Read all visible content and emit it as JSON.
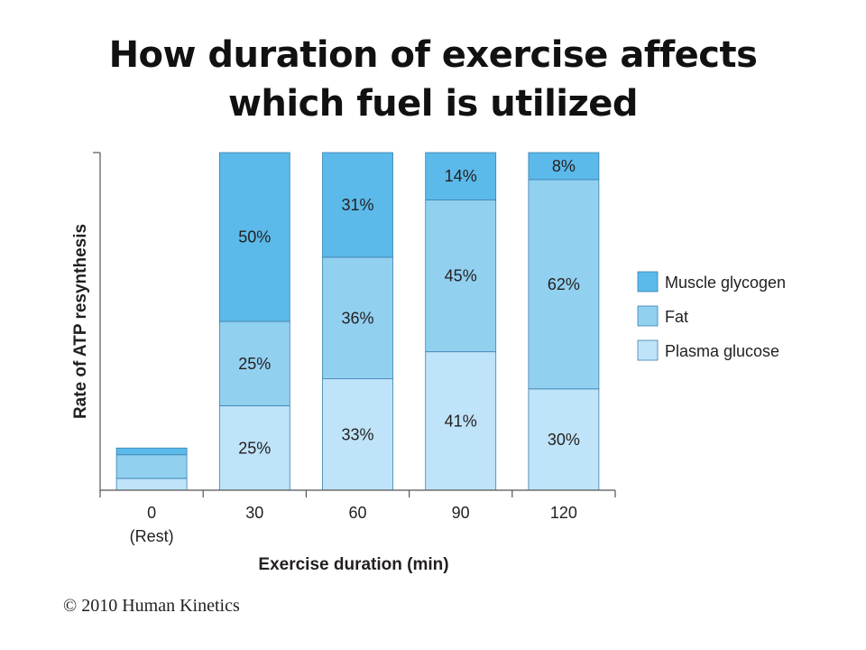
{
  "title_lines": [
    "How duration of exercise affects",
    "which fuel is utilized"
  ],
  "copyright": "© 2010 Human Kinetics",
  "colors": {
    "muscle_glycogen": "#5bbae9",
    "fat": "#92d0f0",
    "plasma_glucose": "#bfe3f8",
    "outline": "#3a7fb0",
    "axis": "#555555"
  },
  "chart_data": {
    "type": "bar",
    "stacked": true,
    "xlabel": "Exercise duration (min)",
    "ylabel": "Rate of ATP resynthesis",
    "categories": [
      "0",
      "30",
      "60",
      "90",
      "120"
    ],
    "category_sublabels": [
      "(Rest)",
      "",
      "",
      "",
      ""
    ],
    "ylim": [
      0,
      100
    ],
    "grid": false,
    "legend_position": "right",
    "bar_totals": [
      12.5,
      100,
      100,
      100,
      100
    ],
    "series": [
      {
        "name": "Plasma glucose",
        "color": "#bfe3f8",
        "values": [
          3.5,
          25,
          33,
          41,
          30
        ],
        "labels": [
          "",
          "25%",
          "33%",
          "41%",
          "30%"
        ]
      },
      {
        "name": "Fat",
        "color": "#92d0f0",
        "values": [
          7,
          25,
          36,
          45,
          62
        ],
        "labels": [
          "",
          "25%",
          "36%",
          "45%",
          "62%"
        ]
      },
      {
        "name": "Muscle glycogen",
        "color": "#5bbae9",
        "values": [
          2,
          50,
          31,
          14,
          8
        ],
        "labels": [
          "",
          "50%",
          "31%",
          "14%",
          "8%"
        ]
      }
    ],
    "legend_order": [
      "Muscle glycogen",
      "Fat",
      "Plasma glucose"
    ]
  }
}
